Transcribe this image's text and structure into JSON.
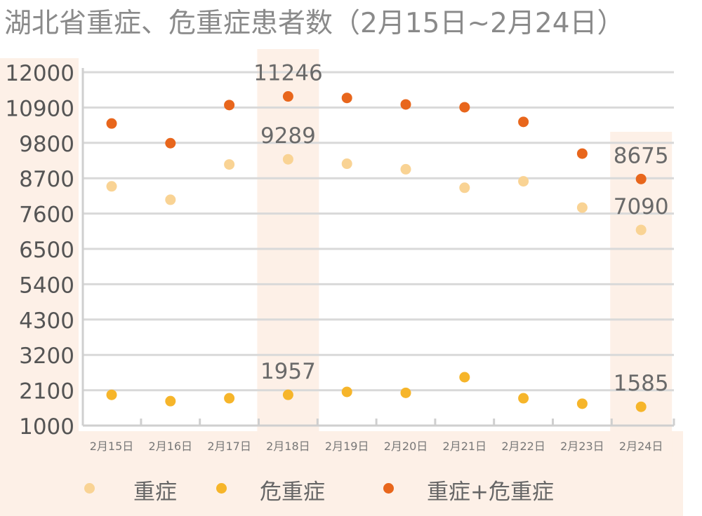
{
  "title": "湖北省重症、危重症患者数（2月15日~2月24日）",
  "legend": [
    {
      "label": "重症",
      "color": "#f9d394"
    },
    {
      "label": "危重症",
      "color": "#f6b52a"
    },
    {
      "label": "重症+危重症",
      "color": "#e8661c"
    }
  ],
  "chart_data": {
    "type": "scatter",
    "title": "湖北省重症、危重症患者数（2月15日~2月24日）",
    "categories": [
      "2月15日",
      "2月16日",
      "2月17日",
      "2月18日",
      "2月19日",
      "2月20日",
      "2月21日",
      "2月22日",
      "2月23日",
      "2月24日"
    ],
    "y_ticks": [
      1000,
      2100,
      3200,
      4300,
      5400,
      6500,
      7600,
      8700,
      9800,
      10900,
      12000
    ],
    "ylim": [
      1000,
      12000
    ],
    "grid": true,
    "legend_position": "bottom",
    "highlighted_categories": [
      "2月18日",
      "2月24日"
    ],
    "series": [
      {
        "name": "重症",
        "color": "#f9d394",
        "values": [
          8447,
          8030,
          9128,
          9289,
          9151,
          8979,
          8404,
          8604,
          7786,
          7090
        ]
      },
      {
        "name": "危重症",
        "color": "#f6b52a",
        "values": [
          1956,
          1760,
          1850,
          1957,
          2048,
          2018,
          2506,
          1850,
          1680,
          1585
        ]
      },
      {
        "name": "重症+危重症",
        "color": "#e8661c",
        "values": [
          10403,
          9790,
          10978,
          11246,
          11199,
          10997,
          10910,
          10454,
          9466,
          8675
        ]
      }
    ],
    "data_labels": [
      {
        "series": 2,
        "index": 3,
        "text": "11246"
      },
      {
        "series": 0,
        "index": 3,
        "text": "9289"
      },
      {
        "series": 1,
        "index": 3,
        "text": "1957"
      },
      {
        "series": 2,
        "index": 9,
        "text": "8675"
      },
      {
        "series": 0,
        "index": 9,
        "text": "7090"
      },
      {
        "series": 1,
        "index": 9,
        "text": "1585"
      }
    ]
  }
}
